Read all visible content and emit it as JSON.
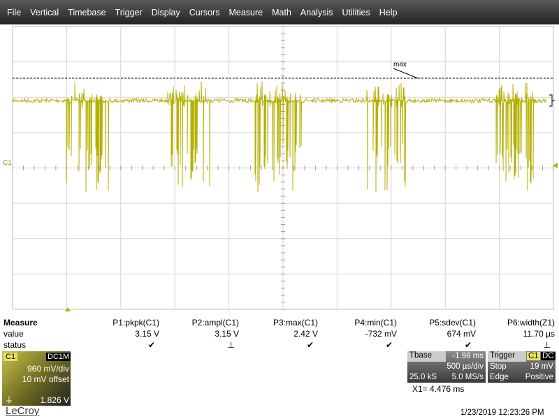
{
  "menu": [
    "File",
    "Vertical",
    "Timebase",
    "Trigger",
    "Display",
    "Cursors",
    "Measure",
    "Math",
    "Analysis",
    "Utilities",
    "Help"
  ],
  "graticule": {
    "trace_label": "C1",
    "marker_label": "max"
  },
  "measure": {
    "title": "Measure",
    "row_labels": [
      "value",
      "status"
    ],
    "columns": [
      {
        "name": "P1:pkpk(C1)",
        "value": "3.15 V",
        "status": "✔"
      },
      {
        "name": "P2:ampl(C1)",
        "value": "3.15 V",
        "status": "⊥"
      },
      {
        "name": "P3:max(C1)",
        "value": "2.42 V",
        "status": "✔"
      },
      {
        "name": "P4:min(C1)",
        "value": "-732 mV",
        "status": "✔"
      },
      {
        "name": "P5:sdev(C1)",
        "value": "674 mV",
        "status": "✔"
      },
      {
        "name": "P6:width(Z1)",
        "value": "11.70 µs",
        "status": "⊥"
      }
    ]
  },
  "channel": {
    "name": "C1",
    "coupling": "DC1M",
    "scale": "960 mV/div",
    "offset": "10 mV offset",
    "level": "1.826 V"
  },
  "timebase": {
    "title": "Tbase",
    "delay": "-1.98 ms",
    "scale": "500 µs/div",
    "samples": "25.0 kS",
    "rate": "5.0 MS/s"
  },
  "trigger": {
    "title": "Trigger",
    "source": "C1",
    "coupling": "DC",
    "mode": "Stop",
    "level": "19 mV",
    "type": "Edge",
    "slope": "Positive"
  },
  "cursor": "X1= 4.476 ms",
  "brand": "LeCroy",
  "timestamp": "1/23/2019 12:23:26 PM"
}
